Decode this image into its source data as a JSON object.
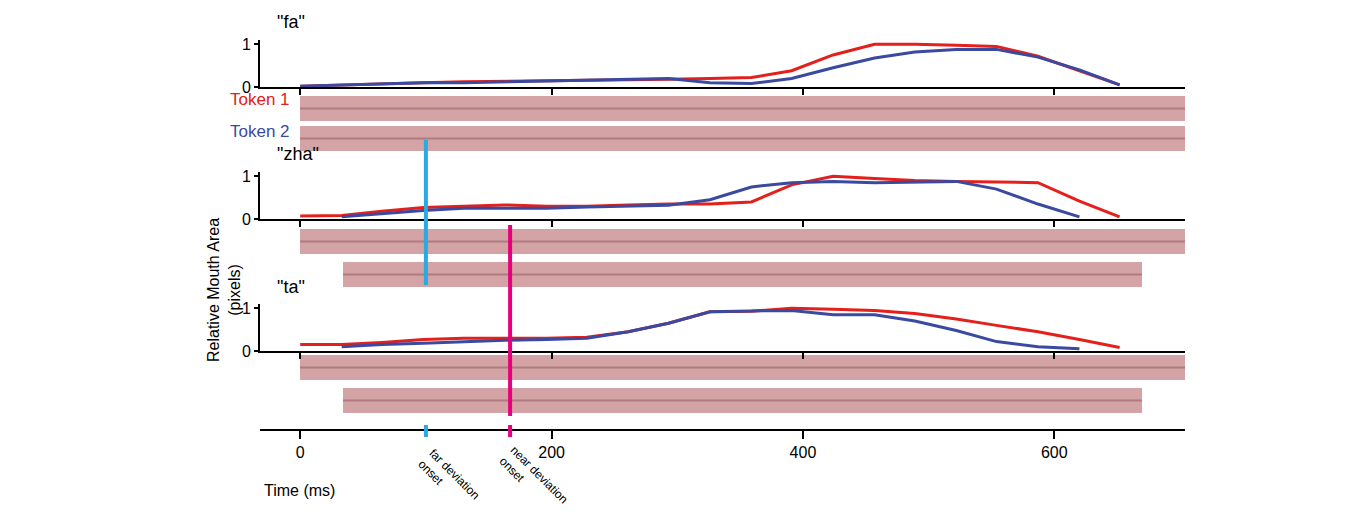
{
  "chart_data": {
    "type": "line",
    "xlabel": "Time (ms)",
    "ylabel": "Relative Mouth Area (pixels)",
    "xlim": [
      -32,
      704
    ],
    "xticks": [
      0,
      200,
      400,
      600
    ],
    "ylim": [
      0,
      1.1
    ],
    "yticks": [
      0,
      1
    ],
    "markers": [
      {
        "label": "far deviation onset",
        "x": 100,
        "color": "#29abe2"
      },
      {
        "label": "near deviation onset",
        "x": 167,
        "color": "#e6007e"
      }
    ],
    "panels": [
      {
        "title": "\"fa\"",
        "series": [
          {
            "name": "Token 1",
            "color": "#e3201b",
            "x": [
              0,
              33,
              65,
              98,
              130,
              163,
              196,
              228,
              261,
              293,
              326,
              359,
              391,
              424,
              457,
              489,
              522,
              554,
              587,
              620,
              652
            ],
            "values": [
              0.02,
              0.05,
              0.08,
              0.1,
              0.12,
              0.13,
              0.14,
              0.15,
              0.17,
              0.18,
              0.2,
              0.22,
              0.38,
              0.75,
              1.0,
              1.0,
              0.98,
              0.95,
              0.72,
              0.38,
              0.05
            ]
          },
          {
            "name": "Token 2",
            "color": "#3a4aa0",
            "x": [
              0,
              33,
              65,
              98,
              130,
              163,
              196,
              228,
              261,
              293,
              326,
              359,
              391,
              424,
              457,
              489,
              522,
              554,
              587,
              620,
              652
            ],
            "values": [
              0.02,
              0.05,
              0.07,
              0.1,
              0.1,
              0.12,
              0.13,
              0.15,
              0.17,
              0.2,
              0.1,
              0.08,
              0.2,
              0.45,
              0.68,
              0.82,
              0.88,
              0.88,
              0.7,
              0.4,
              0.05
            ]
          }
        ]
      },
      {
        "title": "\"zha\"",
        "series": [
          {
            "name": "Token 1",
            "color": "#e3201b",
            "x": [
              0,
              33,
              65,
              98,
              130,
              163,
              196,
              228,
              261,
              293,
              326,
              359,
              391,
              424,
              457,
              489,
              522,
              554,
              587,
              620,
              652
            ],
            "values": [
              0.07,
              0.08,
              0.18,
              0.27,
              0.3,
              0.33,
              0.3,
              0.3,
              0.33,
              0.35,
              0.35,
              0.4,
              0.8,
              1.0,
              0.95,
              0.9,
              0.88,
              0.87,
              0.85,
              0.42,
              0.05
            ]
          },
          {
            "name": "Token 2",
            "color": "#3a4aa0",
            "x": [
              33,
              65,
              98,
              130,
              163,
              196,
              228,
              261,
              293,
              326,
              359,
              391,
              424,
              457,
              489,
              522,
              554,
              587,
              620
            ],
            "values": [
              0.05,
              0.12,
              0.2,
              0.25,
              0.25,
              0.25,
              0.28,
              0.3,
              0.32,
              0.45,
              0.75,
              0.85,
              0.88,
              0.85,
              0.87,
              0.88,
              0.7,
              0.35,
              0.05
            ]
          }
        ]
      },
      {
        "title": "\"ta\"",
        "series": [
          {
            "name": "Token 1",
            "color": "#e3201b",
            "x": [
              0,
              33,
              65,
              98,
              130,
              163,
              196,
              228,
              261,
              293,
              326,
              359,
              391,
              424,
              457,
              489,
              522,
              554,
              587,
              620,
              652
            ],
            "values": [
              0.15,
              0.15,
              0.2,
              0.27,
              0.3,
              0.3,
              0.3,
              0.32,
              0.45,
              0.65,
              0.92,
              0.93,
              1.0,
              0.98,
              0.95,
              0.88,
              0.75,
              0.6,
              0.45,
              0.27,
              0.08
            ]
          },
          {
            "name": "Token 2",
            "color": "#3a4aa0",
            "x": [
              33,
              65,
              98,
              130,
              163,
              196,
              228,
              261,
              293,
              326,
              359,
              391,
              424,
              457,
              489,
              522,
              554,
              587,
              620
            ],
            "values": [
              0.1,
              0.15,
              0.18,
              0.22,
              0.25,
              0.27,
              0.3,
              0.45,
              0.65,
              0.92,
              0.93,
              0.95,
              0.85,
              0.85,
              0.7,
              0.48,
              0.22,
              0.1,
              0.05
            ]
          }
        ]
      }
    ]
  }
}
